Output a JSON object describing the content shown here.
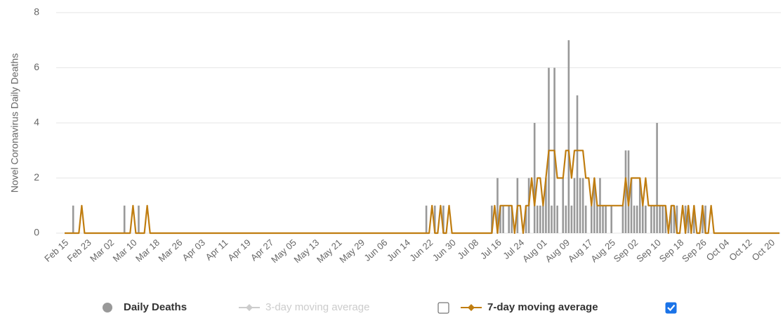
{
  "chart_data": {
    "type": "bar_line",
    "y_label": "Novel Coronavirus Daily Deaths",
    "ylim": [
      0,
      8
    ],
    "yticks": [
      0,
      2,
      4,
      6,
      8
    ],
    "grid": true,
    "categories": [
      "Feb 15",
      null,
      null,
      null,
      null,
      null,
      null,
      null,
      "Feb 23",
      null,
      null,
      null,
      null,
      null,
      null,
      null,
      "Mar 02",
      null,
      null,
      null,
      null,
      null,
      null,
      null,
      "Mar 10",
      null,
      null,
      null,
      null,
      null,
      null,
      null,
      "Mar 18",
      null,
      null,
      null,
      null,
      null,
      null,
      null,
      "Mar 26",
      null,
      null,
      null,
      null,
      null,
      null,
      null,
      "Apr 03",
      null,
      null,
      null,
      null,
      null,
      null,
      null,
      "Apr 11",
      null,
      null,
      null,
      null,
      null,
      null,
      null,
      "Apr 19",
      null,
      null,
      null,
      null,
      null,
      null,
      null,
      "Apr 27",
      null,
      null,
      null,
      null,
      null,
      null,
      null,
      "May 05",
      null,
      null,
      null,
      null,
      null,
      null,
      null,
      "May 13",
      null,
      null,
      null,
      null,
      null,
      null,
      null,
      "May 21",
      null,
      null,
      null,
      null,
      null,
      null,
      null,
      "May 29",
      null,
      null,
      null,
      null,
      null,
      null,
      null,
      "Jun 06",
      null,
      null,
      null,
      null,
      null,
      null,
      null,
      "Jun 14",
      null,
      null,
      null,
      null,
      null,
      null,
      null,
      "Jun 22",
      null,
      null,
      null,
      null,
      null,
      null,
      null,
      "Jun 30",
      null,
      null,
      null,
      null,
      null,
      null,
      null,
      "Jul 08",
      null,
      null,
      null,
      null,
      null,
      null,
      null,
      "Jul 16",
      null,
      null,
      null,
      null,
      null,
      null,
      null,
      "Jul 24",
      null,
      null,
      null,
      null,
      null,
      null,
      null,
      "Aug 01",
      null,
      null,
      null,
      null,
      null,
      null,
      null,
      "Aug 09",
      null,
      null,
      null,
      null,
      null,
      null,
      null,
      "Aug 17",
      null,
      null,
      null,
      null,
      null,
      null,
      null,
      "Aug 25",
      null,
      null,
      null,
      null,
      null,
      null,
      null,
      "Sep 02",
      null,
      null,
      null,
      null,
      null,
      null,
      null,
      "Sep 10",
      null,
      null,
      null,
      null,
      null,
      null,
      null,
      "Sep 18",
      null,
      null,
      null,
      null,
      null,
      null,
      null,
      "Sep 26",
      null,
      null,
      null,
      null,
      null,
      null,
      null,
      "Oct 04",
      null,
      null,
      null,
      null,
      null,
      null,
      null,
      "Oct 12",
      null,
      null,
      null,
      null,
      null,
      null,
      null,
      "Oct 20",
      null,
      null,
      null
    ],
    "series": [
      {
        "name": "Daily Deaths",
        "color": "#999999",
        "kind": "bar",
        "values": [
          0,
          0,
          0,
          1,
          0,
          0,
          0,
          0,
          0,
          0,
          0,
          0,
          0,
          0,
          0,
          0,
          0,
          0,
          0,
          0,
          0,
          1,
          0,
          0,
          0,
          0,
          1,
          0,
          0,
          0,
          0,
          0,
          0,
          0,
          0,
          0,
          0,
          0,
          0,
          0,
          0,
          0,
          0,
          0,
          0,
          0,
          0,
          0,
          0,
          0,
          0,
          0,
          0,
          0,
          0,
          0,
          0,
          0,
          0,
          0,
          0,
          0,
          0,
          0,
          0,
          0,
          0,
          0,
          0,
          0,
          0,
          0,
          0,
          0,
          0,
          0,
          0,
          0,
          0,
          0,
          0,
          0,
          0,
          0,
          0,
          0,
          0,
          0,
          0,
          0,
          0,
          0,
          0,
          0,
          0,
          0,
          0,
          0,
          0,
          0,
          0,
          0,
          0,
          0,
          0,
          0,
          0,
          0,
          0,
          0,
          0,
          0,
          0,
          0,
          0,
          0,
          0,
          0,
          0,
          0,
          0,
          0,
          0,
          0,
          0,
          0,
          0,
          1,
          0,
          0,
          1,
          0,
          0,
          1,
          0,
          0,
          0,
          0,
          0,
          0,
          0,
          0,
          0,
          0,
          0,
          0,
          0,
          0,
          0,
          0,
          1,
          0,
          2,
          1,
          1,
          0,
          1,
          1,
          0,
          2,
          0,
          0,
          1,
          2,
          0,
          4,
          1,
          1,
          1,
          2,
          6,
          1,
          6,
          1,
          0,
          2,
          1,
          7,
          1,
          2,
          5,
          2,
          2,
          1,
          0,
          1,
          2,
          1,
          2,
          1,
          1,
          0,
          1,
          0,
          0,
          0,
          1,
          3,
          3,
          2,
          1,
          1,
          2,
          1,
          1,
          0,
          1,
          1,
          4,
          1,
          1,
          1,
          0,
          1,
          1,
          1,
          0,
          0,
          1,
          1,
          0,
          1,
          0,
          0,
          1,
          1,
          0,
          0,
          0,
          0,
          0,
          0,
          0,
          0,
          0,
          0,
          0,
          0,
          0,
          0,
          0,
          0,
          0,
          0,
          0,
          0,
          0,
          0,
          0,
          0,
          0,
          0
        ]
      },
      {
        "name": "7-day moving average",
        "color": "#c07d10",
        "kind": "line",
        "checkbox": true,
        "values": [
          0,
          0,
          0,
          0,
          0,
          0,
          1,
          0,
          0,
          0,
          0,
          0,
          0,
          0,
          0,
          0,
          0,
          0,
          0,
          0,
          0,
          0,
          0,
          0,
          1,
          0,
          0,
          0,
          0,
          1,
          0,
          0,
          0,
          0,
          0,
          0,
          0,
          0,
          0,
          0,
          0,
          0,
          0,
          0,
          0,
          0,
          0,
          0,
          0,
          0,
          0,
          0,
          0,
          0,
          0,
          0,
          0,
          0,
          0,
          0,
          0,
          0,
          0,
          0,
          0,
          0,
          0,
          0,
          0,
          0,
          0,
          0,
          0,
          0,
          0,
          0,
          0,
          0,
          0,
          0,
          0,
          0,
          0,
          0,
          0,
          0,
          0,
          0,
          0,
          0,
          0,
          0,
          0,
          0,
          0,
          0,
          0,
          0,
          0,
          0,
          0,
          0,
          0,
          0,
          0,
          0,
          0,
          0,
          0,
          0,
          0,
          0,
          0,
          0,
          0,
          0,
          0,
          0,
          0,
          0,
          0,
          0,
          0,
          0,
          0,
          0,
          0,
          0,
          0,
          1,
          0,
          0,
          1,
          0,
          0,
          1,
          0,
          0,
          0,
          0,
          0,
          0,
          0,
          0,
          0,
          0,
          0,
          0,
          0,
          0,
          0,
          1,
          0,
          1,
          1,
          1,
          1,
          1,
          0,
          1,
          1,
          0,
          1,
          1,
          2,
          1,
          2,
          2,
          1,
          2,
          3,
          3,
          3,
          2,
          2,
          2,
          3,
          3,
          2,
          3,
          3,
          3,
          3,
          2,
          2,
          1,
          2,
          1,
          1,
          1,
          1,
          1,
          1,
          1,
          1,
          1,
          1,
          2,
          1,
          2,
          2,
          2,
          2,
          1,
          2,
          1,
          1,
          1,
          1,
          1,
          1,
          1,
          0,
          1,
          1,
          0,
          0,
          1,
          0,
          1,
          0,
          1,
          0,
          0,
          1,
          0,
          0,
          1,
          0,
          0,
          0,
          0,
          0,
          0,
          0,
          0,
          0,
          0,
          0,
          0,
          0,
          0,
          0,
          0,
          0,
          0,
          0,
          0,
          0,
          0,
          0,
          0
        ]
      }
    ],
    "hidden_series": {
      "name": "3-day moving average",
      "color": "#cccccc",
      "checkbox": false
    }
  }
}
